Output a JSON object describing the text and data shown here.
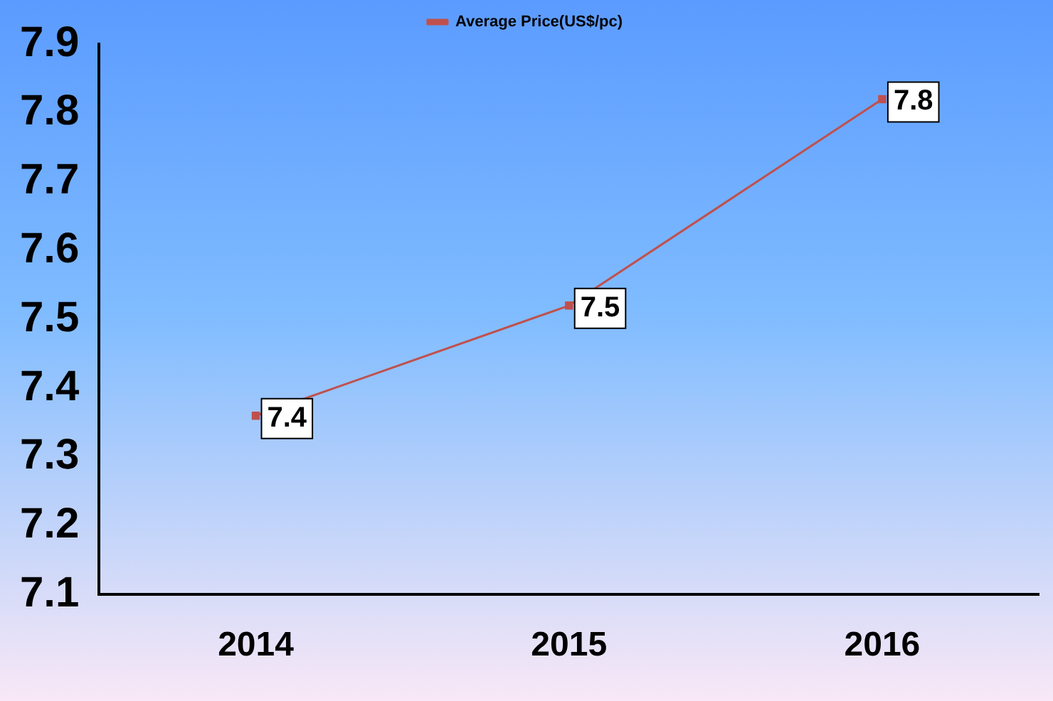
{
  "chart_data": {
    "type": "line",
    "categories": [
      "2014",
      "2015",
      "2016"
    ],
    "series": [
      {
        "name": "Average Price(US$/pc)",
        "color": "#c0504d",
        "values": [
          7.36,
          7.52,
          7.82
        ],
        "value_labels": [
          "7.4",
          "7.5",
          "7.8"
        ]
      }
    ],
    "ylim": [
      7.1,
      7.9
    ],
    "yticks": [
      7.1,
      7.2,
      7.3,
      7.4,
      7.5,
      7.6,
      7.7,
      7.8,
      7.9
    ],
    "grid": false,
    "legend": "top",
    "marker": "square",
    "line_style": "solid"
  }
}
